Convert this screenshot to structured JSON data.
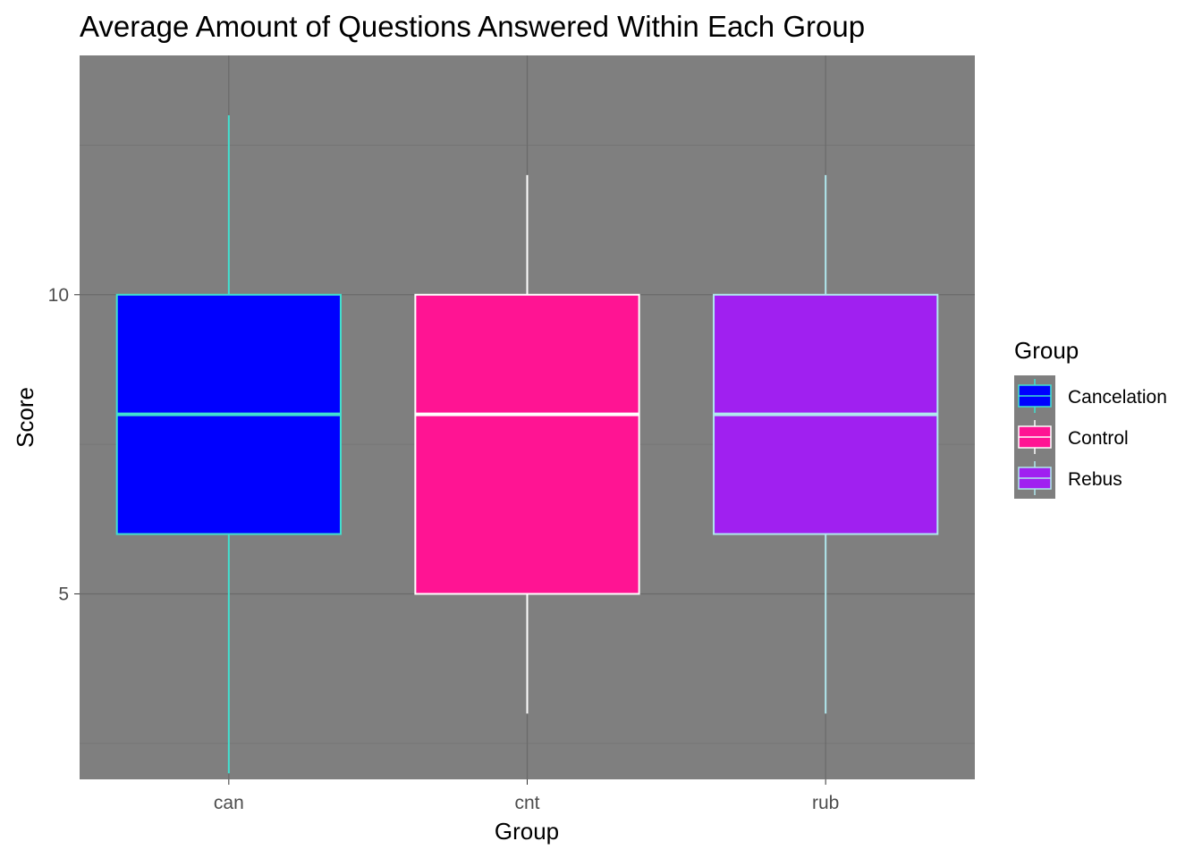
{
  "colors": {
    "panel_background": "#7f7f7f",
    "grid_major": "#6a6a6a",
    "grid_minor": "#737373",
    "tick_text": "#4d4d4d"
  },
  "chart_data": {
    "type": "boxplot",
    "title": "Average Amount of Questions Answered Within Each Group",
    "xlabel": "Group",
    "ylabel": "Score",
    "ylim": [
      1.9,
      14
    ],
    "y_ticks": [
      5,
      10
    ],
    "grid": true,
    "legend_title": "Group",
    "legend_position": "right",
    "series": [
      {
        "category": "can",
        "name": "Cancelation",
        "whisker_low": 2,
        "q1": 6,
        "median": 8,
        "q3": 10,
        "whisker_high": 13,
        "fill": "#0000ff",
        "line": "#40e0d0"
      },
      {
        "category": "cnt",
        "name": "Control",
        "whisker_low": 3,
        "q1": 5,
        "median": 8,
        "q3": 10,
        "whisker_high": 12,
        "fill": "#ff1493",
        "line": "#ffffff"
      },
      {
        "category": "rub",
        "name": "Rebus",
        "whisker_low": 3,
        "q1": 6,
        "median": 8,
        "q3": 10,
        "whisker_high": 12,
        "fill": "#a020f0",
        "line": "#b0e8ee"
      }
    ]
  }
}
